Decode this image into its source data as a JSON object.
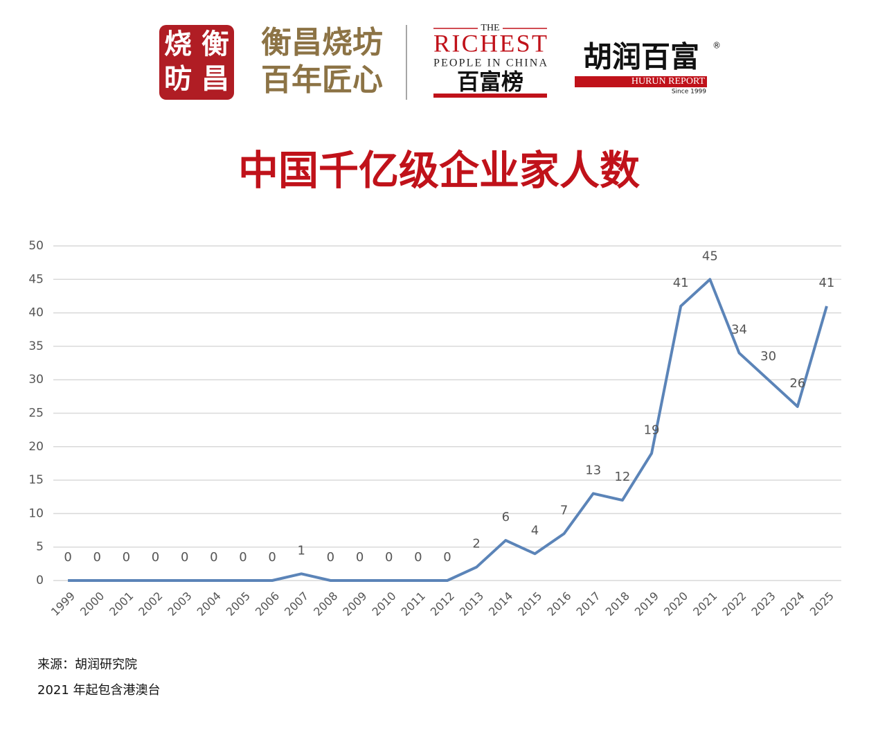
{
  "header": {
    "seal": [
      "烧",
      "衡",
      "昉",
      "昌"
    ],
    "brand_line1": "衡昌烧坊",
    "brand_line2": "百年匠心",
    "richest_the": "THE",
    "richest_main": "RICHEST",
    "richest_sub": "PEOPLE IN CHINA",
    "richest_cn": "百富榜",
    "hurun_cn": "胡润百富",
    "hurun_mark": "®",
    "hurun_en": "HURUN REPORT",
    "hurun_since": "Since 1999"
  },
  "chart_data": {
    "type": "line",
    "title": "中国千亿级企业家人数",
    "categories": [
      "1999",
      "2000",
      "2001",
      "2002",
      "2003",
      "2004",
      "2005",
      "2006",
      "2007",
      "2008",
      "2009",
      "2010",
      "2011",
      "2012",
      "2013",
      "2014",
      "2015",
      "2016",
      "2017",
      "2018",
      "2019",
      "2020",
      "2021",
      "2022",
      "2023",
      "2024",
      "2025"
    ],
    "values": [
      0,
      0,
      0,
      0,
      0,
      0,
      0,
      0,
      1,
      0,
      0,
      0,
      0,
      0,
      2,
      6,
      4,
      7,
      13,
      12,
      19,
      41,
      45,
      34,
      30,
      26,
      41
    ],
    "color": "#5b84b8",
    "ylim": [
      0,
      50
    ],
    "yticks": [
      0,
      5,
      10,
      15,
      20,
      25,
      30,
      35,
      40,
      45,
      50
    ],
    "grid": true,
    "data_labels": true
  },
  "footer": {
    "source": "来源：胡润研究院",
    "note": "2021 年起包含港澳台"
  }
}
